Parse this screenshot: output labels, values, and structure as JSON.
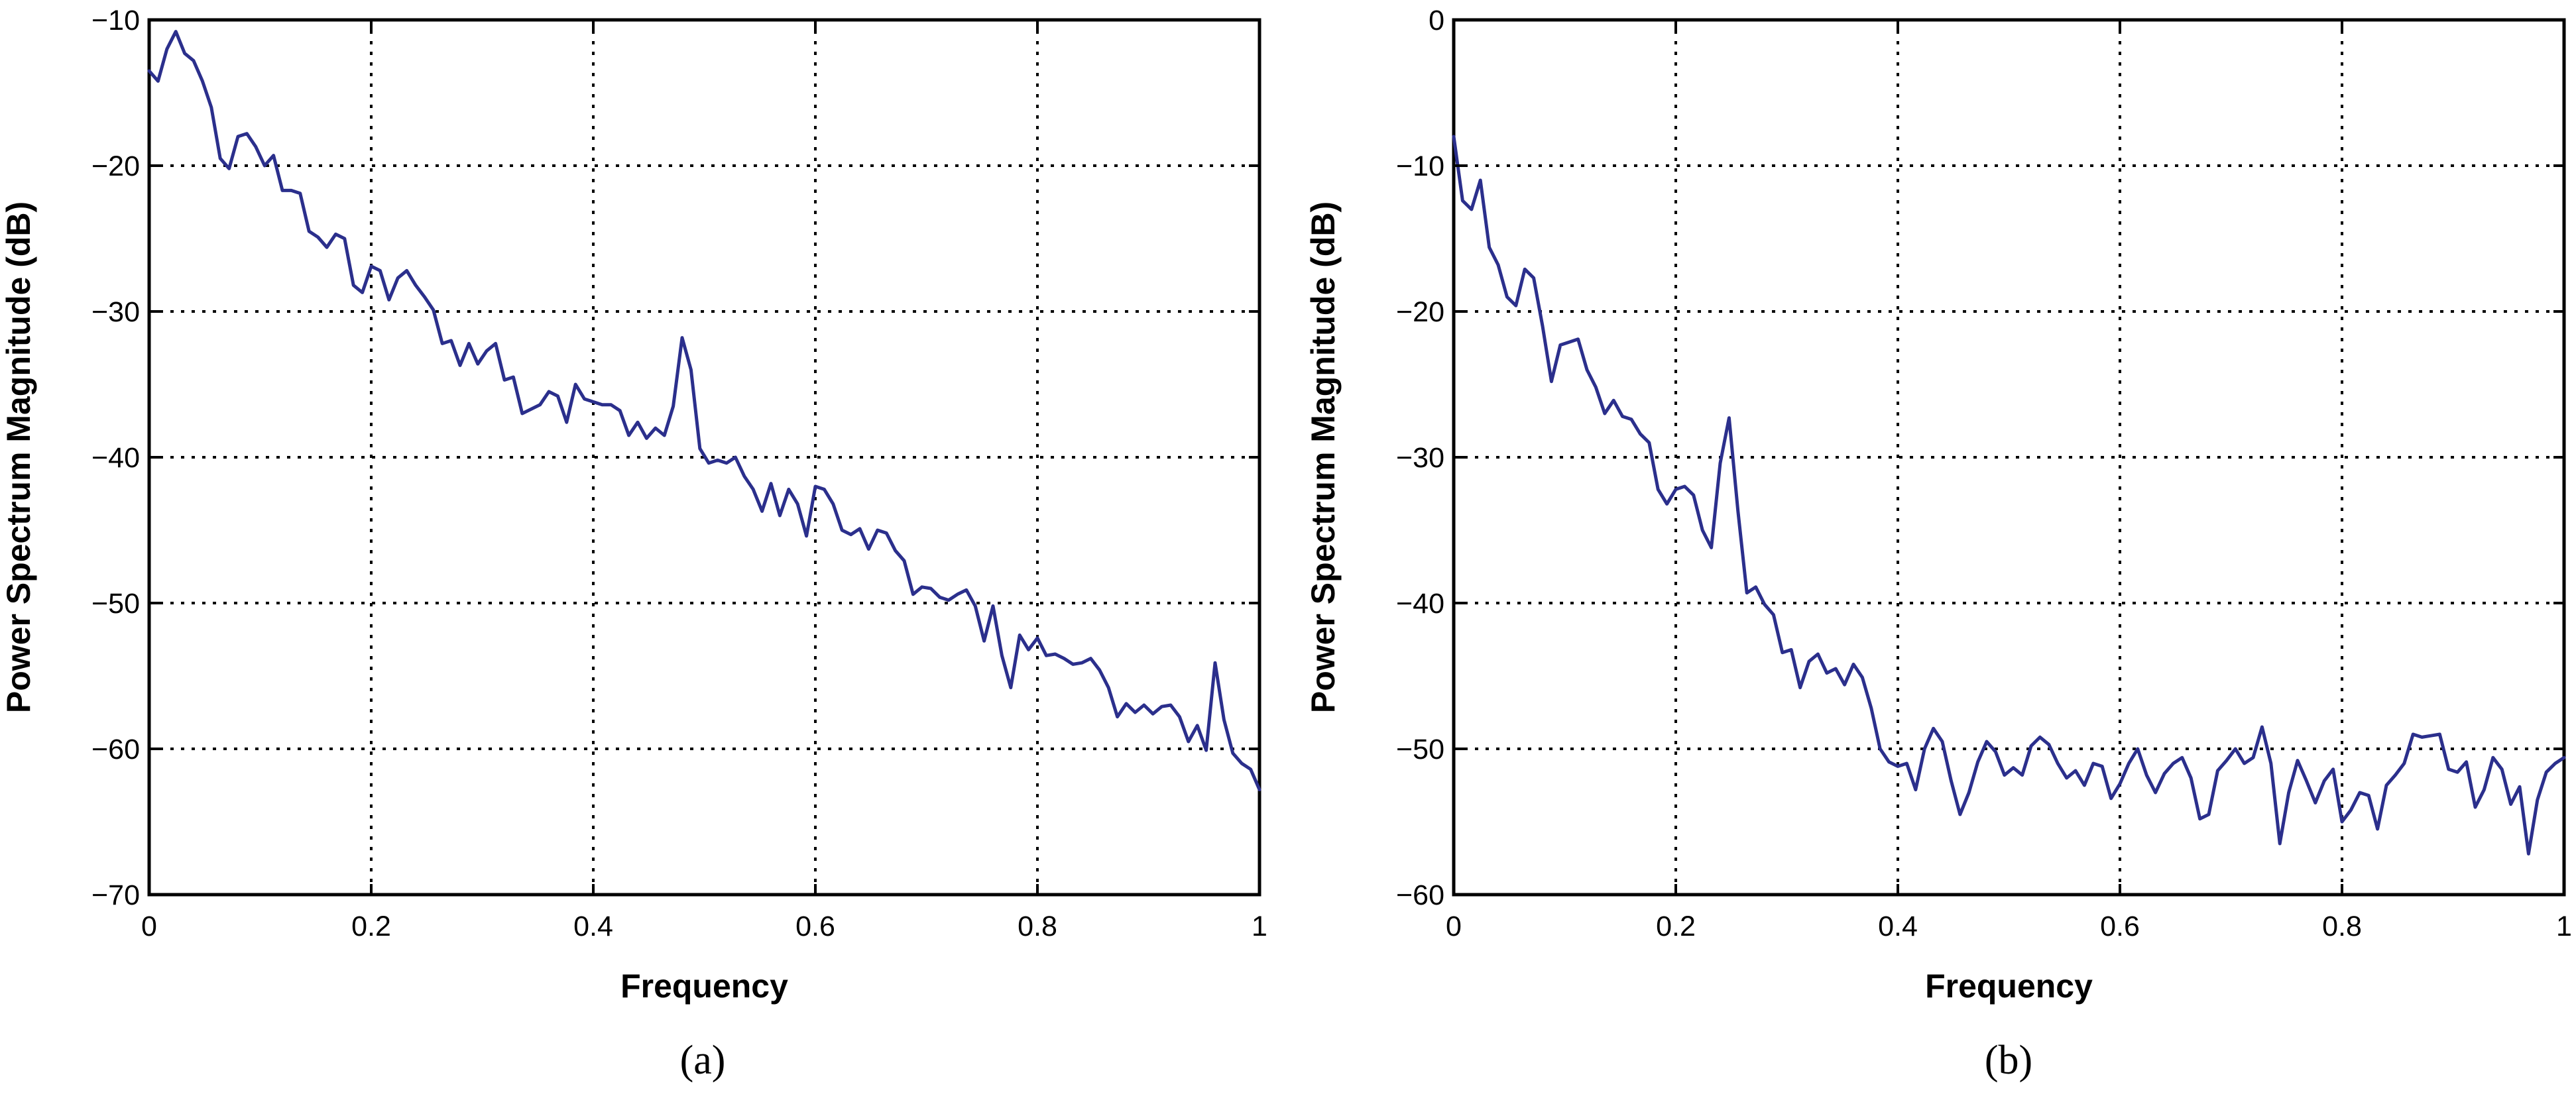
{
  "colors": {
    "series": "#2b2f8c",
    "axis": "#000000",
    "background": "#ffffff"
  },
  "chart_data": [
    {
      "type": "line",
      "panel_label": "(a)",
      "xlabel": "Frequency",
      "ylabel": "Power Spectrum Magnitude (dB)",
      "xlim": [
        0,
        1
      ],
      "ylim": [
        -70,
        -10
      ],
      "xticks": [
        0,
        0.2,
        0.4,
        0.6,
        0.8,
        1
      ],
      "xtick_labels": [
        "0",
        "0.2",
        "0.4",
        "0.6",
        "0.8",
        "1"
      ],
      "yticks": [
        -70,
        -60,
        -50,
        -40,
        -30,
        -20,
        -10
      ],
      "ytick_labels": [
        "−70",
        "−60",
        "−50",
        "−40",
        "−30",
        "−20",
        "−10"
      ],
      "grid": true,
      "series": [
        {
          "x": [
            0,
            0.008,
            0.016,
            0.024,
            0.032,
            0.04,
            0.048,
            0.056,
            0.064,
            0.072,
            0.08,
            0.088,
            0.096,
            0.104,
            0.112,
            0.12,
            0.128,
            0.136,
            0.144,
            0.152,
            0.16,
            0.168,
            0.176,
            0.184,
            0.192,
            0.2,
            0.208,
            0.216,
            0.224,
            0.232,
            0.24,
            0.248,
            0.256,
            0.264,
            0.272,
            0.28,
            0.288,
            0.296,
            0.304,
            0.312,
            0.32,
            0.328,
            0.336,
            0.344,
            0.352,
            0.36,
            0.368,
            0.376,
            0.384,
            0.392,
            0.4,
            0.408,
            0.416,
            0.424,
            0.432,
            0.44,
            0.448,
            0.456,
            0.464,
            0.472,
            0.48,
            0.488,
            0.496,
            0.504,
            0.512,
            0.52,
            0.528,
            0.536,
            0.544,
            0.552,
            0.56,
            0.568,
            0.576,
            0.584,
            0.592,
            0.6,
            0.608,
            0.616,
            0.624,
            0.632,
            0.64,
            0.648,
            0.656,
            0.664,
            0.672,
            0.68,
            0.688,
            0.696,
            0.704,
            0.712,
            0.72,
            0.728,
            0.736,
            0.744,
            0.752,
            0.76,
            0.768,
            0.776,
            0.784,
            0.792,
            0.8,
            0.808,
            0.816,
            0.824,
            0.832,
            0.84,
            0.848,
            0.856,
            0.864,
            0.872,
            0.88,
            0.888,
            0.896,
            0.904,
            0.912,
            0.92,
            0.928,
            0.936,
            0.944,
            0.952,
            0.96,
            0.968,
            0.976,
            0.984,
            0.992,
            1.0
          ],
          "y": [
            -13.5,
            -14.2,
            -12.0,
            -10.8,
            -12.3,
            -12.8,
            -14.2,
            -16.0,
            -19.5,
            -20.2,
            -18.0,
            -17.8,
            -18.7,
            -20.0,
            -19.3,
            -21.7,
            -21.7,
            -21.9,
            -24.5,
            -24.9,
            -25.6,
            -24.7,
            -25.0,
            -28.2,
            -28.7,
            -26.9,
            -27.2,
            -29.2,
            -27.7,
            -27.2,
            -28.2,
            -29.0,
            -29.9,
            -32.2,
            -32.0,
            -33.7,
            -32.2,
            -33.6,
            -32.7,
            -32.2,
            -34.7,
            -34.5,
            -37.0,
            -36.7,
            -36.4,
            -35.5,
            -35.8,
            -37.6,
            -35.0,
            -36.0,
            -36.2,
            -36.4,
            -36.4,
            -36.8,
            -38.5,
            -37.6,
            -38.7,
            -38.0,
            -38.5,
            -36.5,
            -31.8,
            -34.0,
            -39.4,
            -40.4,
            -40.2,
            -40.4,
            -40.0,
            -41.3,
            -42.2,
            -43.7,
            -41.8,
            -44.0,
            -42.2,
            -43.2,
            -45.4,
            -42.0,
            -42.2,
            -43.2,
            -45.0,
            -45.3,
            -44.9,
            -46.3,
            -45.0,
            -45.2,
            -46.4,
            -47.1,
            -49.4,
            -48.9,
            -49.0,
            -49.6,
            -49.8,
            -49.4,
            -49.1,
            -50.2,
            -52.6,
            -50.2,
            -53.6,
            -55.8,
            -52.2,
            -53.2,
            -52.4,
            -53.6,
            -53.5,
            -53.8,
            -54.2,
            -54.1,
            -53.8,
            -54.6,
            -55.8,
            -57.8,
            -56.9,
            -57.5,
            -57.0,
            -57.6,
            -57.1,
            -57.0,
            -57.8,
            -59.5,
            -58.4,
            -60.1,
            -54.1,
            -58.0,
            -60.3,
            -61.0,
            -61.4,
            -62.8
          ]
        }
      ]
    },
    {
      "type": "line",
      "panel_label": "(b)",
      "xlabel": "Frequency",
      "ylabel": "Power Spectrum Magnitude (dB)",
      "xlim": [
        0,
        1
      ],
      "ylim": [
        -60,
        0
      ],
      "xticks": [
        0,
        0.2,
        0.4,
        0.6,
        0.8,
        1
      ],
      "xtick_labels": [
        "0",
        "0.2",
        "0.4",
        "0.6",
        "0.8",
        "1"
      ],
      "yticks": [
        -60,
        -50,
        -40,
        -30,
        -20,
        -10,
        0
      ],
      "ytick_labels": [
        "−60",
        "−50",
        "−40",
        "−30",
        "−20",
        "−10",
        "0"
      ],
      "grid": true,
      "series": [
        {
          "x": [
            0,
            0.008,
            0.016,
            0.024,
            0.032,
            0.04,
            0.048,
            0.056,
            0.064,
            0.072,
            0.08,
            0.088,
            0.096,
            0.104,
            0.112,
            0.12,
            0.128,
            0.136,
            0.144,
            0.152,
            0.16,
            0.168,
            0.176,
            0.184,
            0.192,
            0.2,
            0.208,
            0.216,
            0.224,
            0.232,
            0.24,
            0.248,
            0.256,
            0.264,
            0.272,
            0.28,
            0.288,
            0.296,
            0.304,
            0.312,
            0.32,
            0.328,
            0.336,
            0.344,
            0.352,
            0.36,
            0.368,
            0.376,
            0.384,
            0.392,
            0.4,
            0.408,
            0.416,
            0.424,
            0.432,
            0.44,
            0.448,
            0.456,
            0.464,
            0.472,
            0.48,
            0.488,
            0.496,
            0.504,
            0.512,
            0.52,
            0.528,
            0.536,
            0.544,
            0.552,
            0.56,
            0.568,
            0.576,
            0.584,
            0.592,
            0.6,
            0.608,
            0.616,
            0.624,
            0.632,
            0.64,
            0.648,
            0.656,
            0.664,
            0.672,
            0.68,
            0.688,
            0.696,
            0.704,
            0.712,
            0.72,
            0.728,
            0.736,
            0.744,
            0.752,
            0.76,
            0.768,
            0.776,
            0.784,
            0.792,
            0.8,
            0.808,
            0.816,
            0.824,
            0.832,
            0.84,
            0.848,
            0.856,
            0.864,
            0.872,
            0.88,
            0.888,
            0.896,
            0.904,
            0.912,
            0.92,
            0.928,
            0.936,
            0.944,
            0.952,
            0.96,
            0.968,
            0.976,
            0.984,
            0.992,
            1.0
          ],
          "y": [
            -8.0,
            -12.4,
            -13.0,
            -11.0,
            -15.6,
            -16.8,
            -19.0,
            -19.6,
            -17.1,
            -17.7,
            -21.0,
            -24.8,
            -22.3,
            -22.1,
            -21.9,
            -24.0,
            -25.2,
            -27.0,
            -26.1,
            -27.2,
            -27.4,
            -28.4,
            -29.0,
            -32.2,
            -33.2,
            -32.2,
            -32.0,
            -32.6,
            -35.0,
            -36.2,
            -30.4,
            -27.3,
            -33.7,
            -39.3,
            -38.9,
            -40.1,
            -40.8,
            -43.4,
            -43.2,
            -45.8,
            -44.0,
            -43.5,
            -44.8,
            -44.5,
            -45.6,
            -44.2,
            -45.1,
            -47.2,
            -50.0,
            -50.9,
            -51.2,
            -51.0,
            -52.8,
            -50.0,
            -48.6,
            -49.5,
            -52.2,
            -54.5,
            -53.0,
            -50.9,
            -49.5,
            -50.2,
            -51.8,
            -51.3,
            -51.8,
            -49.8,
            -49.2,
            -49.7,
            -51.0,
            -52.0,
            -51.5,
            -52.5,
            -51.0,
            -51.2,
            -53.4,
            -52.4,
            -51.0,
            -50.0,
            -51.8,
            -53.0,
            -51.7,
            -51.0,
            -50.6,
            -52.0,
            -54.8,
            -54.5,
            -51.5,
            -50.8,
            -50.0,
            -51.0,
            -50.6,
            -48.5,
            -51.0,
            -56.5,
            -53.0,
            -50.8,
            -52.2,
            -53.7,
            -52.2,
            -51.4,
            -55.0,
            -54.2,
            -53.0,
            -53.2,
            -55.5,
            -52.5,
            -51.8,
            -51.0,
            -49.0,
            -49.2,
            -49.1,
            -49.0,
            -51.4,
            -51.6,
            -50.9,
            -54.0,
            -52.8,
            -50.6,
            -51.4,
            -53.8,
            -52.6,
            -57.2,
            -53.5,
            -51.6,
            -51.0,
            -50.6
          ]
        }
      ]
    }
  ]
}
